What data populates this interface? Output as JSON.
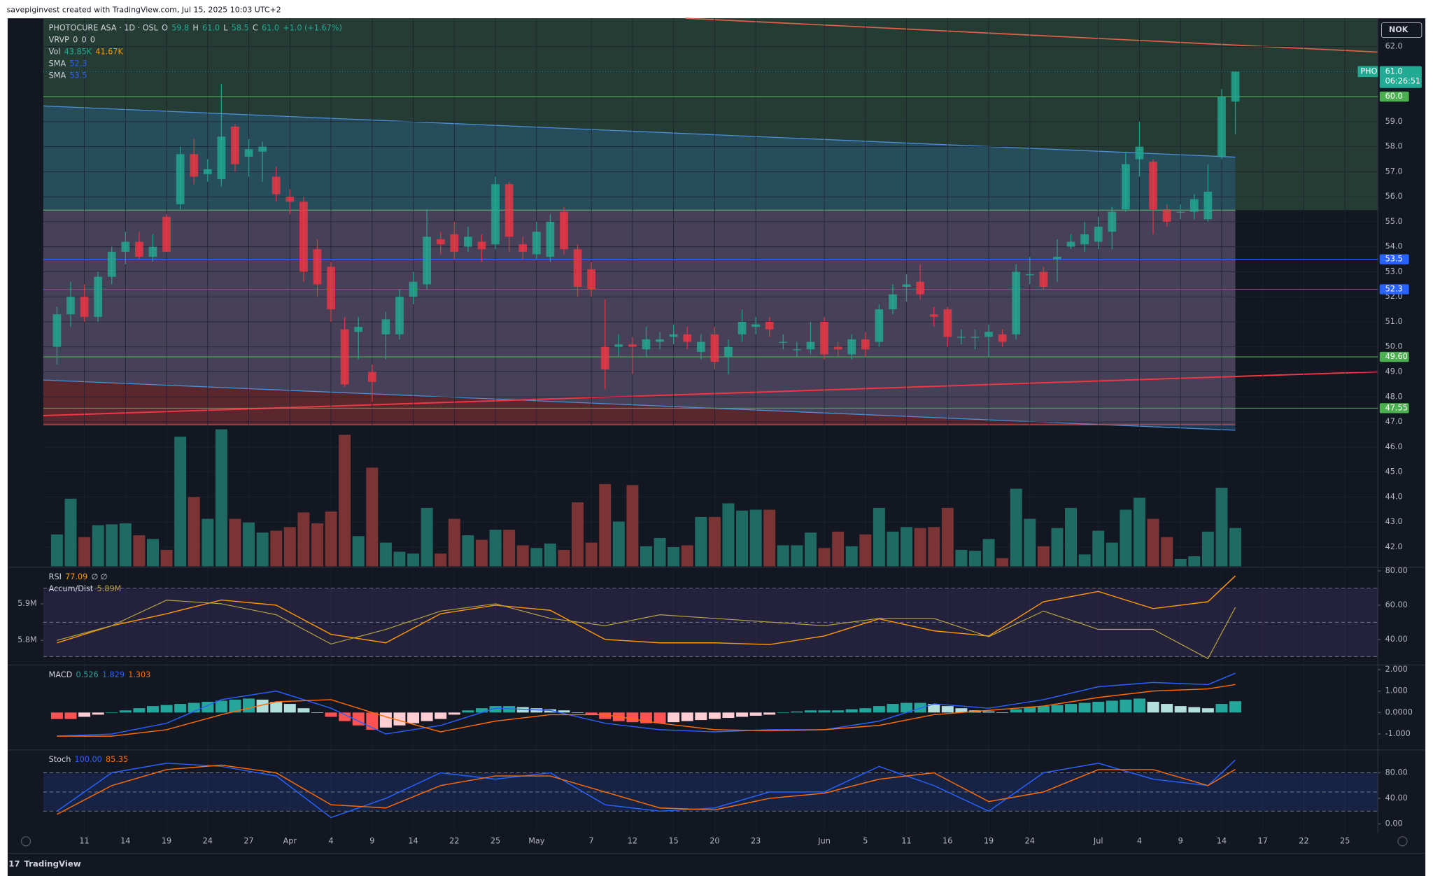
{
  "header": {
    "credit": "savepiginvest created with TradingView.com, Jul 15, 2025 10:03 UTC+2",
    "currency": "NOK",
    "footer": "TradingView"
  },
  "chart_data": [
    {
      "type": "candlestick",
      "title": "PHOTOCURE ASA · 1D · OSL",
      "up_color": "#22ab94",
      "down_color": "#f23645",
      "grid": true,
      "legend": {
        "ohlc": [
          {
            "name": "O",
            "text": "59.8"
          },
          {
            "name": "H",
            "text": "61.0"
          },
          {
            "name": "L",
            "text": "58.5"
          },
          {
            "name": "C",
            "text": "61.0"
          }
        ],
        "change": "+1.0 (+1.67%)",
        "rows": [
          {
            "name": "VRVP",
            "texts": [
              "0",
              "0",
              "0"
            ]
          },
          {
            "name": "Vol",
            "texts": [
              "43.85K",
              "41.67K"
            ]
          },
          {
            "name": "SMA",
            "texts": [
              "52.3"
            ]
          },
          {
            "name": "SMA",
            "texts": [
              "53.5"
            ]
          }
        ]
      },
      "ticker": "PHO",
      "countdown": "06:26:51",
      "xlim": [
        -1,
        96.4
      ],
      "xticks": [
        {
          "value": 2,
          "label": "11"
        },
        {
          "value": 5,
          "label": "14"
        },
        {
          "value": 8,
          "label": "19"
        },
        {
          "value": 11,
          "label": "24"
        },
        {
          "value": 14,
          "label": "27"
        },
        {
          "value": 17,
          "label": "Apr"
        },
        {
          "value": 20,
          "label": "4"
        },
        {
          "value": 23,
          "label": "9"
        },
        {
          "value": 26,
          "label": "14"
        },
        {
          "value": 29,
          "label": "22"
        },
        {
          "value": 32,
          "label": "25"
        },
        {
          "value": 35,
          "label": "May"
        },
        {
          "value": 39,
          "label": "7"
        },
        {
          "value": 42,
          "label": "12"
        },
        {
          "value": 45,
          "label": "15"
        },
        {
          "value": 48,
          "label": "20"
        },
        {
          "value": 51,
          "label": "23"
        },
        {
          "value": 56,
          "label": "Jun"
        },
        {
          "value": 59,
          "label": "5"
        },
        {
          "value": 62,
          "label": "11"
        },
        {
          "value": 65,
          "label": "16"
        },
        {
          "value": 68,
          "label": "19"
        },
        {
          "value": 71,
          "label": "24"
        },
        {
          "value": 76,
          "label": "Jul"
        },
        {
          "value": 79,
          "label": "4"
        },
        {
          "value": 82,
          "label": "9"
        },
        {
          "value": 85,
          "label": "14"
        },
        {
          "value": 88,
          "label": "17"
        },
        {
          "value": 91,
          "label": "22"
        },
        {
          "value": 94,
          "label": "25"
        }
      ],
      "ylim": [
        41.23,
        63.13
      ],
      "yticks": [
        {
          "value": 62,
          "label": "62.0"
        },
        {
          "value": 61,
          "label": "61.0"
        },
        {
          "value": 60,
          "label": "60.0"
        },
        {
          "value": 59,
          "label": "59.0"
        },
        {
          "value": 58,
          "label": "58.0"
        },
        {
          "value": 57,
          "label": "57.0"
        },
        {
          "value": 56,
          "label": "56.0"
        },
        {
          "value": 55,
          "label": "55.0"
        },
        {
          "value": 54,
          "label": "54.0"
        },
        {
          "value": 53,
          "label": "53.0"
        },
        {
          "value": 52,
          "label": "52.0"
        },
        {
          "value": 51,
          "label": "51.0"
        },
        {
          "value": 50,
          "label": "50.0"
        },
        {
          "value": 49,
          "label": "49.0"
        },
        {
          "value": 48,
          "label": "48.0"
        },
        {
          "value": 47,
          "label": "47.0"
        },
        {
          "value": 46,
          "label": "46.0"
        },
        {
          "value": 45,
          "label": "45.0"
        },
        {
          "value": 44,
          "label": "44.0"
        },
        {
          "value": 43,
          "label": "43.0"
        },
        {
          "value": 42,
          "label": "42.0"
        }
      ],
      "levels": [
        {
          "value": 60,
          "label": "60.0",
          "color": "#4caf50"
        },
        {
          "value": 53.5,
          "color": "#2962ff"
        },
        {
          "value": 52.3,
          "color": "#2962ff"
        },
        {
          "value": 49.6,
          "label": "49.60",
          "color": "#4caf50"
        },
        {
          "value": 47.55,
          "color": "#4caf50"
        }
      ],
      "x": [
        0,
        1,
        2,
        3,
        4,
        5,
        6,
        7,
        8,
        9,
        10,
        11,
        12,
        13,
        14,
        15,
        16,
        17,
        18,
        19,
        20,
        21,
        22,
        23,
        24,
        25,
        26,
        27,
        28,
        29,
        30,
        31,
        32,
        33,
        34,
        35,
        36,
        37,
        38,
        39,
        40,
        41,
        42,
        43,
        44,
        45,
        46,
        47,
        48,
        49,
        50,
        51,
        52,
        53,
        54,
        55,
        56,
        57,
        58,
        59,
        60,
        61,
        62,
        63,
        64,
        65,
        66,
        67,
        68,
        69,
        70,
        71,
        72,
        73,
        74,
        75,
        76,
        77,
        78,
        79,
        80,
        81,
        82,
        83,
        84,
        85,
        86
      ],
      "open": [
        50.0,
        51.3,
        52.0,
        51.2,
        52.8,
        53.8,
        54.2,
        53.6,
        55.2,
        55.7,
        57.7,
        56.9,
        56.7,
        58.8,
        57.6,
        57.8,
        56.8,
        56.0,
        55.8,
        53.9,
        53.2,
        50.7,
        50.6,
        49.0,
        50.5,
        50.5,
        52.0,
        52.5,
        54.3,
        54.5,
        54.0,
        54.2,
        54.1,
        56.5,
        54.1,
        53.7,
        53.6,
        55.4,
        53.9,
        53.1,
        50.0,
        50.0,
        50.1,
        49.9,
        50.2,
        50.4,
        50.5,
        49.8,
        50.5,
        49.6,
        50.5,
        50.8,
        51.0,
        50.2,
        49.9,
        49.9,
        51.0,
        50.0,
        49.7,
        50.3,
        50.2,
        51.5,
        52.4,
        52.6,
        51.3,
        51.5,
        50.4,
        50.4,
        50.4,
        50.5,
        50.5,
        52.9,
        53.0,
        53.5,
        54.0,
        54.1,
        54.2,
        54.6,
        55.5,
        57.5,
        57.4,
        55.5,
        55.4,
        55.4,
        55.1,
        57.6,
        59.8
      ],
      "high": [
        51.6,
        52.6,
        52.5,
        53.0,
        54.0,
        54.6,
        54.6,
        54.5,
        55.3,
        58.0,
        58.3,
        57.5,
        60.5,
        58.9,
        58.3,
        58.2,
        57.2,
        56.3,
        56.0,
        54.3,
        53.4,
        51.2,
        51.2,
        49.3,
        51.4,
        52.3,
        53.0,
        55.5,
        54.6,
        55.0,
        54.8,
        54.5,
        56.8,
        56.6,
        54.4,
        55.0,
        55.3,
        55.6,
        54.1,
        53.4,
        51.9,
        50.5,
        50.4,
        50.8,
        50.6,
        50.9,
        50.8,
        50.5,
        50.8,
        50.3,
        51.5,
        51.2,
        51.2,
        50.5,
        50.2,
        51.0,
        51.2,
        50.2,
        50.5,
        50.6,
        51.7,
        52.5,
        52.9,
        53.3,
        51.6,
        51.6,
        50.7,
        50.7,
        50.9,
        50.7,
        53.3,
        53.6,
        53.2,
        54.3,
        54.5,
        55.0,
        55.2,
        55.6,
        57.8,
        59.0,
        57.5,
        55.7,
        55.7,
        56.1,
        57.3,
        60.3,
        61.0
      ],
      "low": [
        49.3,
        50.8,
        51.0,
        51.0,
        52.5,
        53.3,
        53.5,
        53.4,
        53.8,
        55.5,
        56.5,
        56.6,
        56.4,
        57.0,
        56.8,
        56.6,
        55.8,
        55.3,
        52.6,
        52.0,
        51.0,
        48.4,
        49.5,
        47.8,
        49.5,
        50.3,
        51.7,
        52.3,
        53.7,
        53.5,
        53.8,
        53.4,
        53.9,
        53.8,
        53.5,
        53.5,
        53.4,
        53.7,
        52.0,
        52.0,
        48.3,
        49.6,
        48.9,
        49.6,
        49.9,
        50.1,
        49.9,
        49.5,
        49.1,
        48.9,
        50.2,
        50.5,
        50.4,
        49.9,
        49.6,
        49.7,
        49.5,
        49.6,
        49.5,
        49.6,
        50.0,
        51.3,
        51.8,
        51.9,
        50.8,
        50.0,
        50.1,
        49.9,
        49.6,
        50.0,
        50.3,
        52.5,
        52.3,
        52.6,
        53.9,
        53.8,
        53.9,
        53.9,
        55.4,
        56.8,
        54.5,
        54.8,
        55.1,
        55.1,
        55.0,
        57.5,
        58.5
      ],
      "close": [
        51.3,
        52.0,
        51.2,
        52.8,
        53.8,
        54.2,
        53.6,
        54.0,
        53.8,
        57.7,
        56.8,
        57.1,
        58.4,
        57.3,
        57.9,
        58.0,
        56.1,
        55.8,
        53.0,
        52.5,
        51.5,
        48.5,
        50.8,
        48.6,
        51.1,
        52.0,
        52.6,
        54.4,
        54.1,
        53.8,
        54.4,
        53.9,
        56.5,
        54.4,
        53.8,
        54.6,
        55.0,
        53.9,
        52.4,
        52.3,
        49.1,
        50.1,
        50.0,
        50.3,
        50.3,
        50.5,
        50.2,
        50.2,
        49.4,
        50.0,
        51.0,
        50.9,
        50.7,
        50.2,
        49.9,
        50.2,
        49.7,
        49.9,
        50.3,
        49.9,
        51.5,
        52.1,
        52.5,
        52.1,
        51.2,
        50.4,
        50.4,
        50.4,
        50.6,
        50.2,
        53.0,
        52.9,
        52.4,
        53.6,
        54.2,
        54.5,
        54.8,
        55.4,
        57.3,
        58.0,
        55.5,
        55.0,
        55.4,
        55.9,
        56.2,
        60.0,
        61.0
      ],
      "volume": [
        36.5,
        77.3,
        33.4,
        47.0,
        48.0,
        49.1,
        35.5,
        31.3,
        18.8,
        148.2,
        79.3,
        54.3,
        156.6,
        54.3,
        50.1,
        38.6,
        40.7,
        44.9,
        61.6,
        49.1,
        62.6,
        150.3,
        34.5,
        112.8,
        27.1,
        16.7,
        14.6,
        66.8,
        14.6,
        54.3,
        35.5,
        30.3,
        41.8,
        41.8,
        24.0,
        20.9,
        26.1,
        18.8,
        73.1,
        27.1,
        94.0,
        51.2,
        92.9,
        23.0,
        32.4,
        21.9,
        24.0,
        56.4,
        56.4,
        72.0,
        63.7,
        64.7,
        64.7,
        24.0,
        24.0,
        38.6,
        20.9,
        39.7,
        23.0,
        36.5,
        66.8,
        39.7,
        44.9,
        43.8,
        44.9,
        66.8,
        18.8,
        17.7,
        31.3,
        9.4,
        88.7,
        54.3,
        23.0,
        43.8,
        66.8,
        13.6,
        40.7,
        27.1,
        64.7,
        78.3,
        54.3,
        33.4,
        8.4,
        11.5,
        39.7,
        89.8,
        43.85
      ],
      "volume_colors": [
        "#1f6b63",
        "#7a3434"
      ]
    },
    {
      "type": "line",
      "title": "RSI",
      "legend_extra": "∅ ∅",
      "bands": [
        30,
        50,
        70
      ],
      "band_color": "#7e57c2",
      "x": [
        0,
        4,
        8,
        12,
        16,
        20,
        24,
        28,
        32,
        36,
        40,
        44,
        48,
        52,
        56,
        60,
        64,
        68,
        72,
        76,
        80,
        84,
        86
      ],
      "ylim": [
        25.6,
        81.6
      ],
      "yticks": [
        {
          "value": 80,
          "label": "80.00"
        },
        {
          "value": 60,
          "label": "60.00"
        },
        {
          "value": 40,
          "label": "40.00"
        }
      ],
      "y2lim": [
        5.735,
        5.9975
      ],
      "y2ticks": [
        {
          "value": 5.9,
          "label": "5.9M"
        },
        {
          "value": 5.8,
          "label": "5.8M"
        }
      ],
      "series": [
        {
          "color": "#ff9800",
          "values": [
            38,
            48,
            55,
            63,
            60,
            43,
            38,
            55,
            60,
            57,
            40,
            38,
            38,
            37,
            42,
            52,
            45,
            42,
            62,
            68,
            58,
            62,
            77.09
          ]
        },
        {
          "name": "Accum/Dist",
          "color": "#b5a642",
          "axis": "y2",
          "legend": "5.89M",
          "values": [
            5.8,
            5.84,
            5.91,
            5.9,
            5.87,
            5.79,
            5.83,
            5.88,
            5.9,
            5.86,
            5.84,
            5.87,
            5.86,
            5.85,
            5.84,
            5.86,
            5.86,
            5.81,
            5.88,
            5.83,
            5.83,
            5.75,
            5.89
          ]
        }
      ]
    },
    {
      "type": "bar",
      "title": "MACD",
      "x": [
        0,
        4,
        8,
        12,
        16,
        20,
        24,
        28,
        32,
        36,
        40,
        44,
        48,
        52,
        56,
        60,
        64,
        68,
        72,
        76,
        80,
        84,
        86
      ],
      "ylim": [
        -1.7,
        2.17
      ],
      "yticks": [
        {
          "value": 2,
          "label": "2.000"
        },
        {
          "value": 1,
          "label": "1.000"
        },
        {
          "value": 0,
          "label": "0.0000"
        },
        {
          "value": -1,
          "label": "-1.000"
        }
      ],
      "histogram": {
        "colors": [
          "#26a69a",
          "#b2dfdb",
          "#ffcdd2",
          "#ff5252"
        ],
        "values": [
          -0.3,
          -0.3,
          -0.2,
          -0.1,
          0.0,
          0.1,
          0.2,
          0.3,
          0.35,
          0.4,
          0.45,
          0.5,
          0.55,
          0.6,
          0.65,
          0.6,
          0.5,
          0.4,
          0.2,
          0.0,
          -0.2,
          -0.4,
          -0.6,
          -0.8,
          -0.7,
          -0.6,
          -0.5,
          -0.4,
          -0.3,
          -0.1,
          0.1,
          0.2,
          0.3,
          0.3,
          0.25,
          0.2,
          0.15,
          0.1,
          0.0,
          -0.1,
          -0.3,
          -0.4,
          -0.45,
          -0.5,
          -0.5,
          -0.45,
          -0.4,
          -0.35,
          -0.3,
          -0.25,
          -0.2,
          -0.15,
          -0.1,
          0.0,
          0.05,
          0.1,
          0.1,
          0.1,
          0.15,
          0.2,
          0.3,
          0.4,
          0.45,
          0.45,
          0.4,
          0.3,
          0.2,
          0.1,
          0.05,
          0.0,
          0.15,
          0.25,
          0.3,
          0.35,
          0.4,
          0.45,
          0.5,
          0.55,
          0.6,
          0.65,
          0.5,
          0.4,
          0.3,
          0.25,
          0.2,
          0.4,
          0.526
        ]
      },
      "series": [
        {
          "color": "#2962ff",
          "values": [
            -1.1,
            -1.0,
            -0.5,
            0.6,
            1.0,
            0.2,
            -1.0,
            -0.6,
            0.2,
            0.1,
            -0.5,
            -0.8,
            -0.9,
            -0.8,
            -0.8,
            -0.4,
            0.4,
            0.2,
            0.6,
            1.2,
            1.4,
            1.3,
            1.829
          ]
        },
        {
          "color": "#ff6d00",
          "values": [
            -1.1,
            -1.1,
            -0.8,
            -0.1,
            0.5,
            0.6,
            -0.2,
            -0.9,
            -0.4,
            -0.1,
            -0.1,
            -0.5,
            -0.8,
            -0.85,
            -0.8,
            -0.6,
            -0.1,
            0.1,
            0.3,
            0.7,
            1.0,
            1.1,
            1.303
          ]
        }
      ]
    },
    {
      "type": "line",
      "title": "Stoch",
      "legend_values": [
        "100.00",
        "85.35"
      ],
      "bands": [
        20,
        50,
        80
      ],
      "band_color": "#2962ff",
      "x": [
        0,
        4,
        8,
        12,
        16,
        20,
        24,
        28,
        32,
        36,
        40,
        44,
        48,
        52,
        56,
        60,
        64,
        68,
        72,
        76,
        80,
        84,
        86
      ],
      "ylim": [
        -14.3,
        114.3
      ],
      "yticks": [
        {
          "value": 80,
          "label": "80.00"
        },
        {
          "value": 40,
          "label": "40.00"
        },
        {
          "value": 0,
          "label": "0.00"
        }
      ],
      "series": [
        {
          "color": "#2962ff",
          "values": [
            20,
            80,
            95,
            90,
            75,
            10,
            40,
            80,
            70,
            80,
            30,
            20,
            25,
            50,
            50,
            90,
            60,
            20,
            80,
            95,
            70,
            60,
            100
          ]
        },
        {
          "color": "#ff6d00",
          "values": [
            15,
            60,
            85,
            92,
            80,
            30,
            25,
            60,
            75,
            75,
            50,
            25,
            22,
            40,
            48,
            70,
            80,
            35,
            50,
            85,
            85,
            60,
            85.35
          ]
        }
      ]
    }
  ]
}
